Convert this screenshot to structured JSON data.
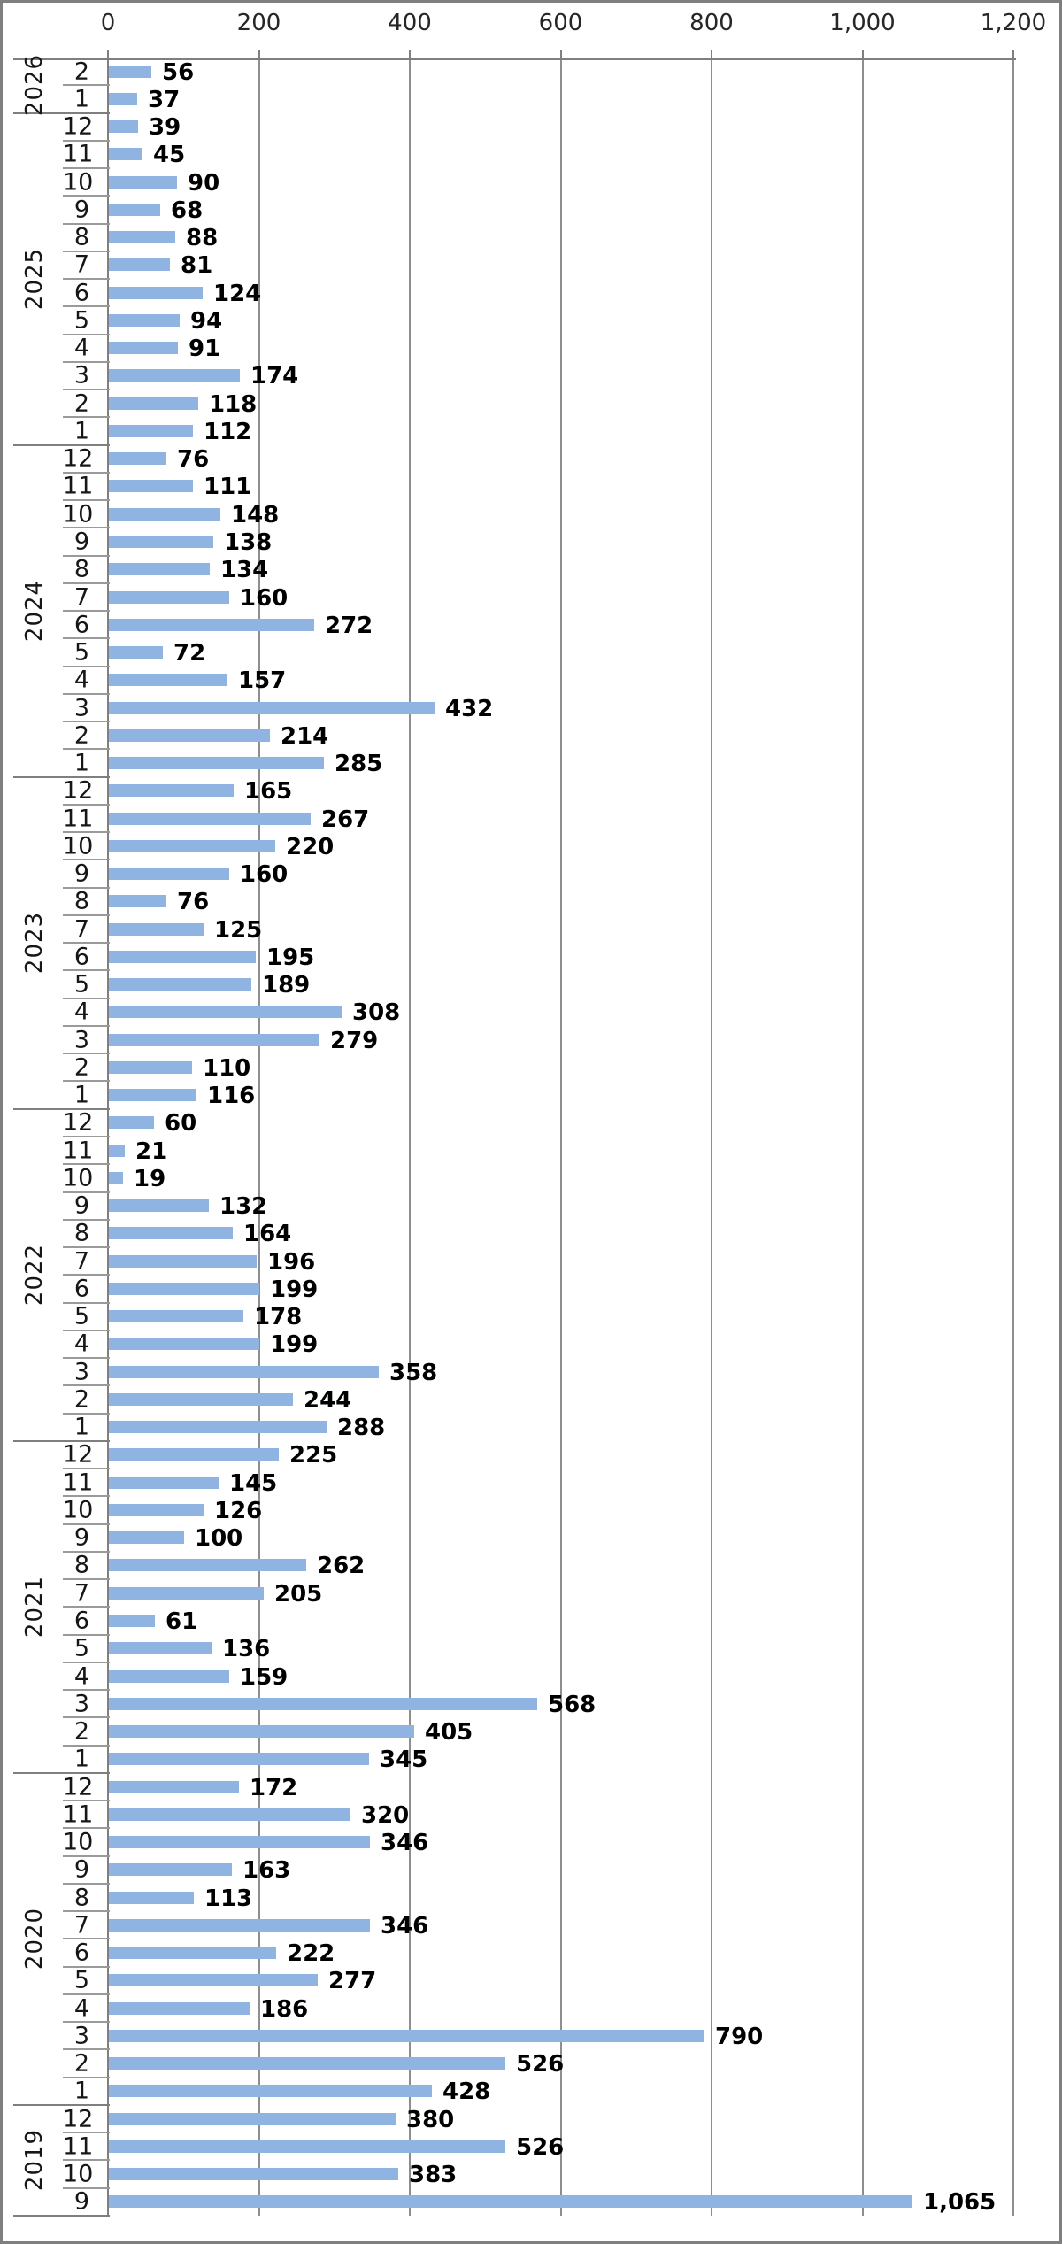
{
  "chart_data": {
    "type": "bar",
    "orientation": "horizontal",
    "title": "",
    "xlabel": "",
    "ylabel": "",
    "x_axis": {
      "position": "top",
      "min": 0,
      "max": 1200,
      "tick_step": 200,
      "tick_labels": [
        "0",
        "200",
        "400",
        "600",
        "800",
        "1,000",
        "1,200"
      ],
      "grid": true
    },
    "bar_color": "#8fb4e2",
    "line_color": "#7f7f7f",
    "gridline_color": "#8e8e8e",
    "groups": [
      {
        "year": "2026",
        "categories": [
          "2",
          "1"
        ],
        "values": [
          56,
          37
        ]
      },
      {
        "year": "2025",
        "categories": [
          "12",
          "11",
          "10",
          "9",
          "8",
          "7",
          "6",
          "5",
          "4",
          "3",
          "2",
          "1"
        ],
        "values": [
          39,
          45,
          90,
          68,
          88,
          81,
          124,
          94,
          91,
          174,
          118,
          112
        ]
      },
      {
        "year": "2024",
        "categories": [
          "12",
          "11",
          "10",
          "9",
          "8",
          "7",
          "6",
          "5",
          "4",
          "3",
          "2",
          "1"
        ],
        "values": [
          76,
          111,
          148,
          138,
          134,
          160,
          272,
          72,
          157,
          432,
          214,
          285
        ]
      },
      {
        "year": "2023",
        "categories": [
          "12",
          "11",
          "10",
          "9",
          "8",
          "7",
          "6",
          "5",
          "4",
          "3",
          "2",
          "1"
        ],
        "values": [
          165,
          267,
          220,
          160,
          76,
          125,
          195,
          189,
          308,
          279,
          110,
          116
        ]
      },
      {
        "year": "2022",
        "categories": [
          "12",
          "11",
          "10",
          "9",
          "8",
          "7",
          "6",
          "5",
          "4",
          "3",
          "2",
          "1"
        ],
        "values": [
          60,
          21,
          19,
          132,
          164,
          196,
          199,
          178,
          199,
          358,
          244,
          288
        ]
      },
      {
        "year": "2021",
        "categories": [
          "12",
          "11",
          "10",
          "9",
          "8",
          "7",
          "6",
          "5",
          "4",
          "3",
          "2",
          "1"
        ],
        "values": [
          225,
          145,
          126,
          100,
          262,
          205,
          61,
          136,
          159,
          568,
          405,
          345
        ]
      },
      {
        "year": "2020",
        "categories": [
          "12",
          "11",
          "10",
          "9",
          "8",
          "7",
          "6",
          "5",
          "4",
          "3",
          "2",
          "1"
        ],
        "values": [
          172,
          320,
          346,
          163,
          113,
          346,
          222,
          277,
          186,
          790,
          526,
          428
        ]
      },
      {
        "year": "2019",
        "categories": [
          "12",
          "11",
          "10",
          "9"
        ],
        "values": [
          380,
          526,
          383,
          1065
        ]
      }
    ]
  }
}
